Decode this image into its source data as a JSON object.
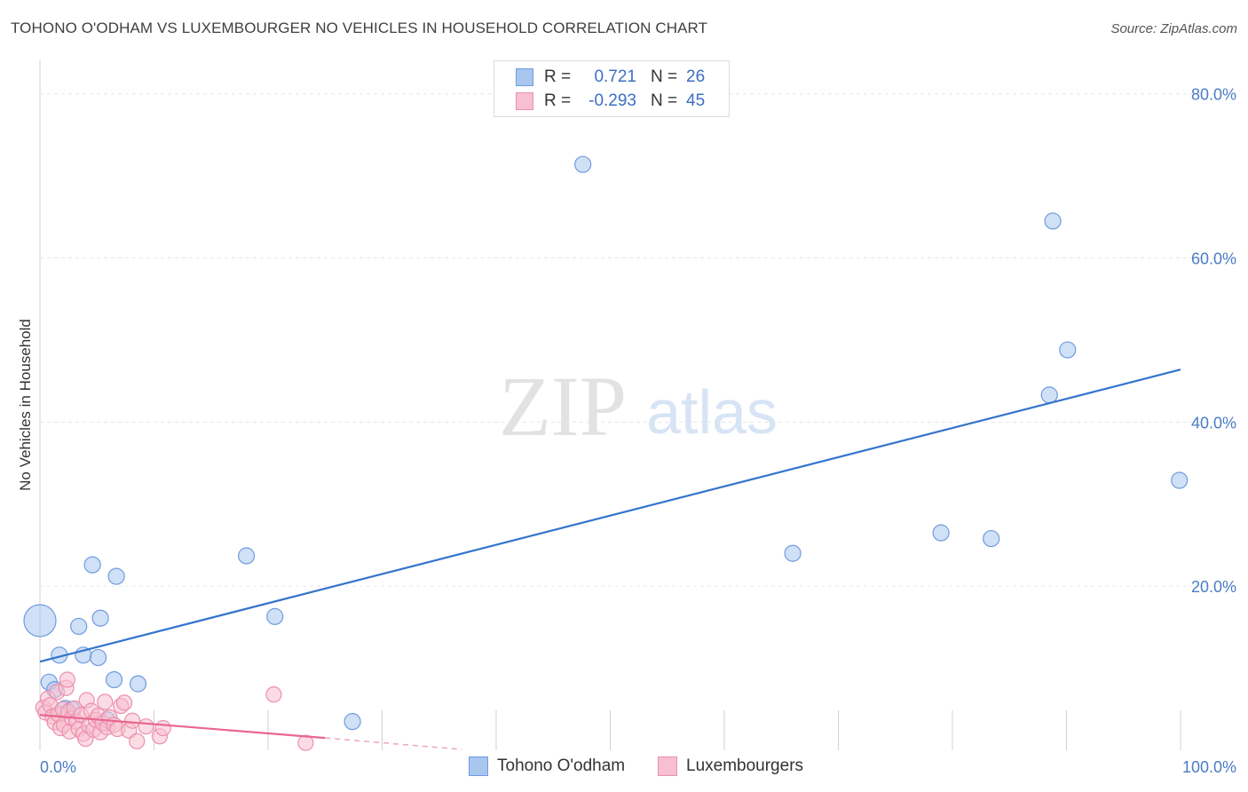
{
  "title": "TOHONO O'ODHAM VS LUXEMBOURGER NO VEHICLES IN HOUSEHOLD CORRELATION CHART",
  "source": "Source: ZipAtlas.com",
  "watermark": {
    "zip": "ZIP",
    "atlas": "atlas"
  },
  "legend": {
    "rows": [
      {
        "r_label": "R =",
        "r_value": "0.721",
        "n_label": "N =",
        "n_value": "26",
        "color": "#a9c6ef",
        "stroke": "#6f9be0"
      },
      {
        "r_label": "R =",
        "r_value": "-0.293",
        "n_label": "N =",
        "n_value": "45",
        "color": "#f7bfd0",
        "stroke": "#ec8fae"
      }
    ]
  },
  "bottom_legend": [
    {
      "label": "Tohono O'odham",
      "color": "#a9c6ef",
      "stroke": "#6f9be0"
    },
    {
      "label": "Luxembourgers",
      "color": "#f7bfd0",
      "stroke": "#ec8fae"
    }
  ],
  "chart_data": {
    "type": "scatter",
    "title": "TOHONO O'ODHAM VS LUXEMBOURGER NO VEHICLES IN HOUSEHOLD CORRELATION CHART",
    "xlabel": "",
    "ylabel": "No Vehicles in Household",
    "xlim": [
      0,
      100
    ],
    "ylim": [
      0,
      83
    ],
    "x_tick_labels": [
      "0.0%",
      "100.0%"
    ],
    "y_ticks": [
      20,
      40,
      60,
      80
    ],
    "y_tick_labels": [
      "20.0%",
      "40.0%",
      "60.0%",
      "80.0%"
    ],
    "grid": true,
    "legend_position": "top-center",
    "series": [
      {
        "name": "Tohono O'odham",
        "color": "#a9c6ef",
        "stroke": "#6f9be0",
        "points": [
          {
            "x": 0.0,
            "y": 15.8,
            "size": 3
          },
          {
            "x": 0.8,
            "y": 8.3
          },
          {
            "x": 1.3,
            "y": 7.4
          },
          {
            "x": 1.7,
            "y": 11.6
          },
          {
            "x": 2.2,
            "y": 5.1
          },
          {
            "x": 2.8,
            "y": 5.0
          },
          {
            "x": 3.4,
            "y": 15.1
          },
          {
            "x": 3.8,
            "y": 11.6
          },
          {
            "x": 4.6,
            "y": 22.6
          },
          {
            "x": 5.1,
            "y": 11.3
          },
          {
            "x": 5.3,
            "y": 16.1
          },
          {
            "x": 5.9,
            "y": 3.7
          },
          {
            "x": 6.5,
            "y": 8.6
          },
          {
            "x": 6.7,
            "y": 21.2
          },
          {
            "x": 8.6,
            "y": 8.1
          },
          {
            "x": 18.1,
            "y": 23.7
          },
          {
            "x": 20.6,
            "y": 16.3
          },
          {
            "x": 27.4,
            "y": 3.5
          },
          {
            "x": 47.6,
            "y": 71.4
          },
          {
            "x": 66.0,
            "y": 24.0
          },
          {
            "x": 79.0,
            "y": 26.5
          },
          {
            "x": 83.4,
            "y": 25.8
          },
          {
            "x": 88.5,
            "y": 43.3
          },
          {
            "x": 88.8,
            "y": 64.5
          },
          {
            "x": 90.1,
            "y": 48.8
          },
          {
            "x": 99.9,
            "y": 32.9
          }
        ],
        "trend": {
          "x": [
            0,
            100
          ],
          "y": [
            10.8,
            46.4
          ]
        }
      },
      {
        "name": "Luxembourgers",
        "color": "#f7bfd0",
        "stroke": "#ec8fae",
        "points": [
          {
            "x": 0.3,
            "y": 5.2
          },
          {
            "x": 0.5,
            "y": 4.6
          },
          {
            "x": 0.7,
            "y": 6.3
          },
          {
            "x": 0.9,
            "y": 5.5
          },
          {
            "x": 1.1,
            "y": 4.1
          },
          {
            "x": 1.3,
            "y": 3.4
          },
          {
            "x": 1.5,
            "y": 7.1
          },
          {
            "x": 1.6,
            "y": 4.4
          },
          {
            "x": 1.8,
            "y": 2.7
          },
          {
            "x": 2.0,
            "y": 5.0
          },
          {
            "x": 2.1,
            "y": 3.1
          },
          {
            "x": 2.3,
            "y": 7.6
          },
          {
            "x": 2.4,
            "y": 8.6
          },
          {
            "x": 2.5,
            "y": 4.7
          },
          {
            "x": 2.6,
            "y": 2.3
          },
          {
            "x": 2.8,
            "y": 3.9
          },
          {
            "x": 3.0,
            "y": 5.1
          },
          {
            "x": 3.2,
            "y": 3.5
          },
          {
            "x": 3.4,
            "y": 2.6
          },
          {
            "x": 3.6,
            "y": 4.3
          },
          {
            "x": 3.8,
            "y": 2.0
          },
          {
            "x": 4.0,
            "y": 1.4
          },
          {
            "x": 4.1,
            "y": 6.1
          },
          {
            "x": 4.3,
            "y": 3.0
          },
          {
            "x": 4.5,
            "y": 4.8
          },
          {
            "x": 4.7,
            "y": 2.5
          },
          {
            "x": 4.9,
            "y": 3.7
          },
          {
            "x": 5.1,
            "y": 4.2
          },
          {
            "x": 5.3,
            "y": 2.2
          },
          {
            "x": 5.5,
            "y": 3.3
          },
          {
            "x": 5.7,
            "y": 5.9
          },
          {
            "x": 5.9,
            "y": 2.8
          },
          {
            "x": 6.1,
            "y": 4.0
          },
          {
            "x": 6.5,
            "y": 3.1
          },
          {
            "x": 6.8,
            "y": 2.6
          },
          {
            "x": 7.1,
            "y": 5.4
          },
          {
            "x": 7.4,
            "y": 5.8
          },
          {
            "x": 7.8,
            "y": 2.4
          },
          {
            "x": 8.1,
            "y": 3.6
          },
          {
            "x": 8.5,
            "y": 1.1
          },
          {
            "x": 9.3,
            "y": 2.9
          },
          {
            "x": 10.5,
            "y": 1.7
          },
          {
            "x": 10.8,
            "y": 2.7
          },
          {
            "x": 20.5,
            "y": 6.8
          },
          {
            "x": 23.3,
            "y": 0.9
          }
        ],
        "trend": {
          "x": [
            0,
            25
          ],
          "y": [
            4.3,
            1.5
          ]
        },
        "trend_dashed": {
          "x": [
            25,
            37
          ],
          "y": [
            1.5,
            0.1
          ]
        }
      }
    ]
  }
}
